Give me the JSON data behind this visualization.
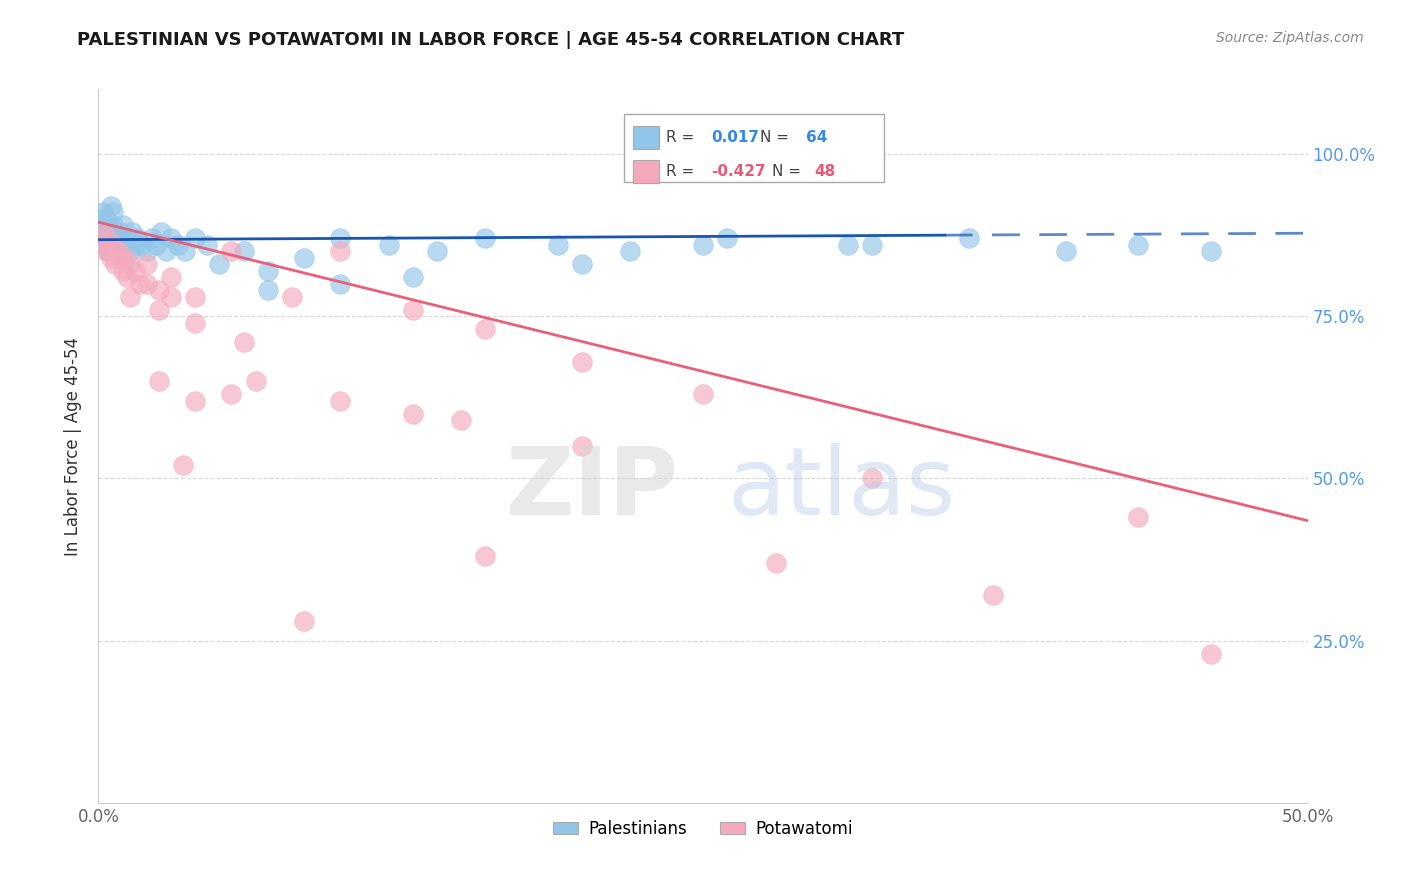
{
  "title": "PALESTINIAN VS POTAWATOMI IN LABOR FORCE | AGE 45-54 CORRELATION CHART",
  "source": "Source: ZipAtlas.com",
  "ylabel": "In Labor Force | Age 45-54",
  "xlim": [
    0.0,
    0.5
  ],
  "ylim": [
    0.0,
    1.1
  ],
  "ytick_vals": [
    0.25,
    0.5,
    0.75,
    1.0
  ],
  "ytick_labels": [
    "25.0%",
    "50.0%",
    "75.0%",
    "100.0%"
  ],
  "xtick_vals": [
    0.0,
    0.1,
    0.2,
    0.3,
    0.4,
    0.5
  ],
  "xtick_labels": [
    "0.0%",
    "",
    "",
    "",
    "",
    "50.0%"
  ],
  "legend_labels": [
    "Palestinians",
    "Potawatomi"
  ],
  "r_blue": "0.017",
  "n_blue": "64",
  "r_pink": "-0.427",
  "n_pink": "48",
  "blue_color": "#92C5E8",
  "pink_color": "#F4AABC",
  "blue_line_color": "#1A56B0",
  "pink_line_color": "#E8607A",
  "watermark_zip": "ZIP",
  "watermark_atlas": "atlas",
  "blue_scatter_x": [
    0.001,
    0.001,
    0.002,
    0.002,
    0.002,
    0.003,
    0.003,
    0.003,
    0.004,
    0.004,
    0.004,
    0.005,
    0.005,
    0.005,
    0.006,
    0.006,
    0.006,
    0.007,
    0.007,
    0.008,
    0.008,
    0.009,
    0.009,
    0.01,
    0.01,
    0.011,
    0.012,
    0.013,
    0.014,
    0.015,
    0.016,
    0.018,
    0.02,
    0.022,
    0.024,
    0.026,
    0.028,
    0.03,
    0.033,
    0.036,
    0.04,
    0.045,
    0.05,
    0.06,
    0.07,
    0.085,
    0.1,
    0.12,
    0.14,
    0.16,
    0.19,
    0.22,
    0.26,
    0.31,
    0.36,
    0.4,
    0.43,
    0.46,
    0.07,
    0.1,
    0.13,
    0.2,
    0.25,
    0.32
  ],
  "blue_scatter_y": [
    0.88,
    0.9,
    0.87,
    0.89,
    0.91,
    0.86,
    0.88,
    0.9,
    0.85,
    0.87,
    0.89,
    0.86,
    0.88,
    0.92,
    0.87,
    0.89,
    0.91,
    0.86,
    0.88,
    0.85,
    0.87,
    0.86,
    0.88,
    0.87,
    0.89,
    0.86,
    0.87,
    0.85,
    0.88,
    0.86,
    0.87,
    0.86,
    0.85,
    0.87,
    0.86,
    0.88,
    0.85,
    0.87,
    0.86,
    0.85,
    0.87,
    0.86,
    0.83,
    0.85,
    0.82,
    0.84,
    0.87,
    0.86,
    0.85,
    0.87,
    0.86,
    0.85,
    0.87,
    0.86,
    0.87,
    0.85,
    0.86,
    0.85,
    0.79,
    0.8,
    0.81,
    0.83,
    0.86,
    0.86
  ],
  "pink_scatter_x": [
    0.001,
    0.002,
    0.003,
    0.004,
    0.005,
    0.006,
    0.007,
    0.008,
    0.009,
    0.01,
    0.011,
    0.012,
    0.013,
    0.015,
    0.017,
    0.02,
    0.025,
    0.03,
    0.04,
    0.055,
    0.013,
    0.02,
    0.025,
    0.03,
    0.04,
    0.06,
    0.08,
    0.1,
    0.13,
    0.16,
    0.2,
    0.25,
    0.025,
    0.04,
    0.065,
    0.1,
    0.15,
    0.035,
    0.055,
    0.13,
    0.2,
    0.32,
    0.43,
    0.085,
    0.16,
    0.28,
    0.37,
    0.46
  ],
  "pink_scatter_y": [
    0.88,
    0.86,
    0.85,
    0.87,
    0.84,
    0.86,
    0.83,
    0.85,
    0.84,
    0.82,
    0.84,
    0.81,
    0.83,
    0.82,
    0.8,
    0.83,
    0.79,
    0.81,
    0.78,
    0.85,
    0.78,
    0.8,
    0.76,
    0.78,
    0.74,
    0.71,
    0.78,
    0.85,
    0.76,
    0.73,
    0.68,
    0.63,
    0.65,
    0.62,
    0.65,
    0.62,
    0.59,
    0.52,
    0.63,
    0.6,
    0.55,
    0.5,
    0.44,
    0.28,
    0.38,
    0.37,
    0.32,
    0.23
  ],
  "blue_line_x": [
    0.0,
    0.5
  ],
  "blue_line_y": [
    0.868,
    0.878
  ],
  "pink_line_x": [
    0.0,
    0.5
  ],
  "pink_line_y": [
    0.895,
    0.435
  ]
}
